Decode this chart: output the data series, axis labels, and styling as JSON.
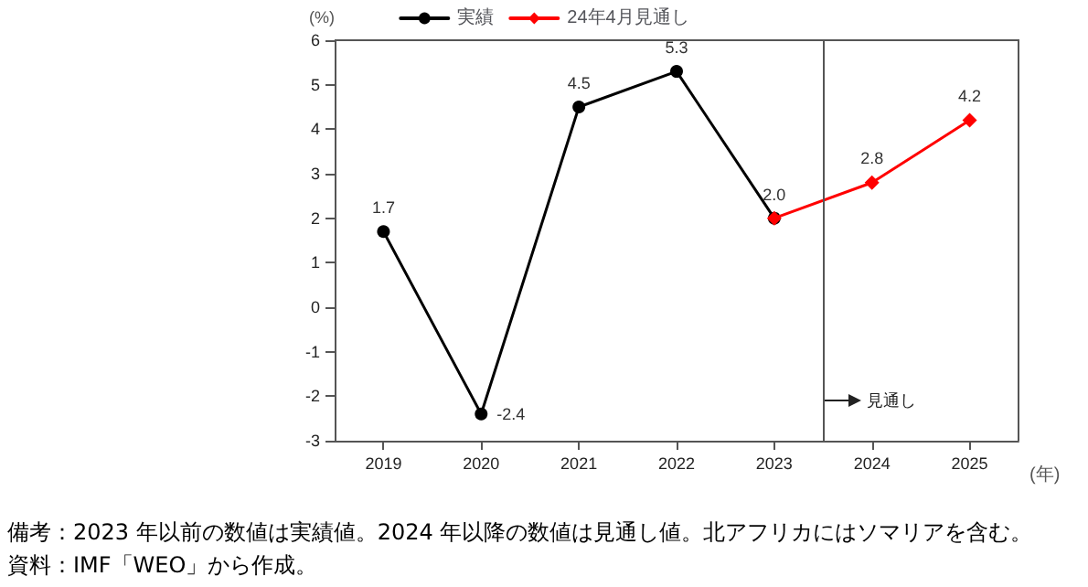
{
  "chart_data": {
    "type": "line",
    "ylabel": "(%)",
    "xlabel": "(年)",
    "x": [
      2019,
      2020,
      2021,
      2022,
      2023
    ],
    "xlim": [
      2018.5,
      2025.5
    ],
    "xticks": [
      2019,
      2020,
      2021,
      2022,
      2023,
      2024,
      2025
    ],
    "ylim": [
      -3,
      6
    ],
    "yticks": [
      -3,
      -2,
      -1,
      0,
      1,
      2,
      3,
      4,
      5,
      6
    ],
    "series": [
      {
        "name": "実績",
        "color": "#000000",
        "marker": "circle",
        "values": [
          1.7,
          -2.4,
          4.5,
          5.3,
          2.0
        ],
        "value_labels": [
          "1.7",
          "-2.4",
          "4.5",
          "5.3",
          "2.0"
        ]
      },
      {
        "name": "24年4月見通し",
        "color": "#ff0000",
        "marker": "diamond",
        "x": [
          2023,
          2024,
          2025
        ],
        "values": [
          2.0,
          2.8,
          4.2
        ],
        "value_labels": [
          null,
          "2.8",
          "4.2"
        ]
      }
    ],
    "grid": false,
    "legend": "top",
    "ref_lines": [
      {
        "axis": "x",
        "value": 2023.5,
        "label": "見通し",
        "color": "#555555"
      }
    ],
    "annotations": [
      "備考：2023 年以前の数値は実績値。2024 年以降の数値は見通し値。北アフリカにはソマリアを含む。",
      "資料：IMF「WEO」から作成。"
    ]
  }
}
